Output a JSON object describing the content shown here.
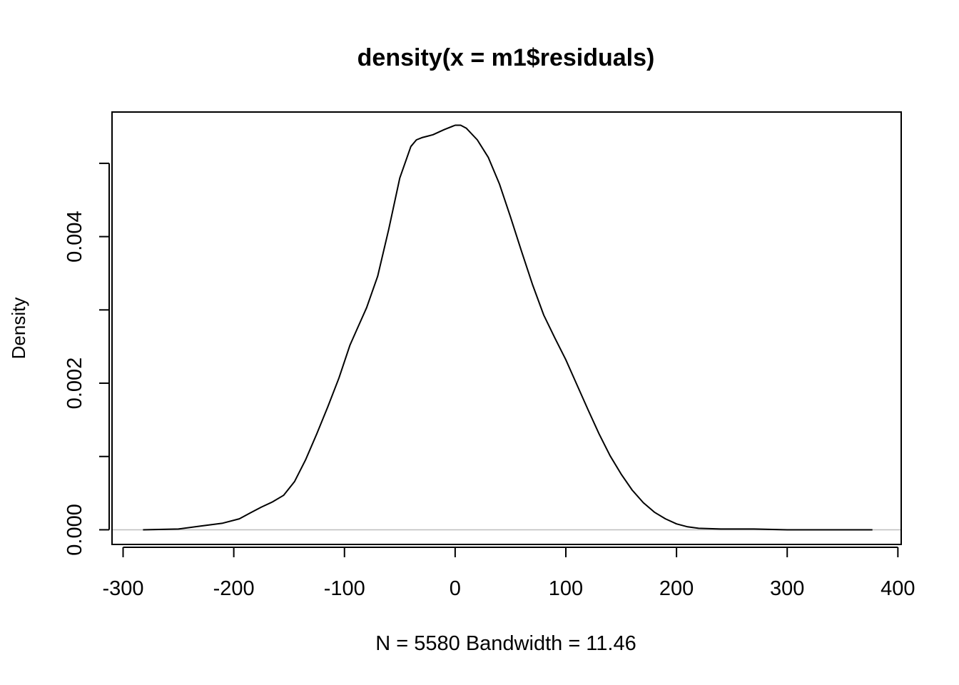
{
  "chart_data": {
    "type": "line",
    "title": "density(x = m1$residuals)",
    "xlabel": "N = 5580   Bandwidth = 11.46",
    "ylabel": "Density",
    "xlim": [
      -310,
      403
    ],
    "ylim": [
      -0.0002,
      0.0057
    ],
    "x_ticks": [
      -300,
      -200,
      -100,
      0,
      100,
      200,
      300,
      400
    ],
    "x_tick_labels": [
      "-300",
      "-200",
      "-100",
      "0",
      "100",
      "200",
      "300",
      "400"
    ],
    "y_ticks": [
      0.0,
      0.001,
      0.002,
      0.003,
      0.004,
      0.005
    ],
    "y_tick_labels": [
      "0.000",
      "",
      "0.002",
      "",
      "0.004",
      ""
    ],
    "baseline": 0,
    "series": [
      {
        "x": [
          -282,
          -250,
          -230,
          -210,
          -195,
          -185,
          -175,
          -165,
          -155,
          -145,
          -135,
          -125,
          -115,
          -105,
          -95,
          -88,
          -80,
          -70,
          -60,
          -50,
          -40,
          -35,
          -30,
          -25,
          -20,
          -10,
          0,
          5,
          10,
          20,
          30,
          40,
          50,
          60,
          70,
          80,
          90,
          100,
          110,
          120,
          130,
          140,
          150,
          160,
          170,
          180,
          190,
          200,
          210,
          220,
          240,
          270,
          300,
          340,
          377
        ],
        "y": [
          0.0,
          1e-05,
          5e-05,
          9e-05,
          0.00015,
          0.00023,
          0.00031,
          0.00038,
          0.00047,
          0.00066,
          0.00096,
          0.00131,
          0.00168,
          0.00207,
          0.00252,
          0.00276,
          0.00303,
          0.00346,
          0.0041,
          0.0048,
          0.00523,
          0.00532,
          0.00535,
          0.00537,
          0.00539,
          0.00546,
          0.00552,
          0.00552,
          0.00548,
          0.00532,
          0.00508,
          0.00472,
          0.00427,
          0.0038,
          0.00334,
          0.00293,
          0.00262,
          0.00232,
          0.00198,
          0.00164,
          0.00131,
          0.00101,
          0.00076,
          0.00054,
          0.00037,
          0.00024,
          0.00015,
          8e-05,
          4e-05,
          2e-05,
          1e-05,
          1e-05,
          0.0,
          0.0,
          0.0
        ]
      }
    ]
  }
}
